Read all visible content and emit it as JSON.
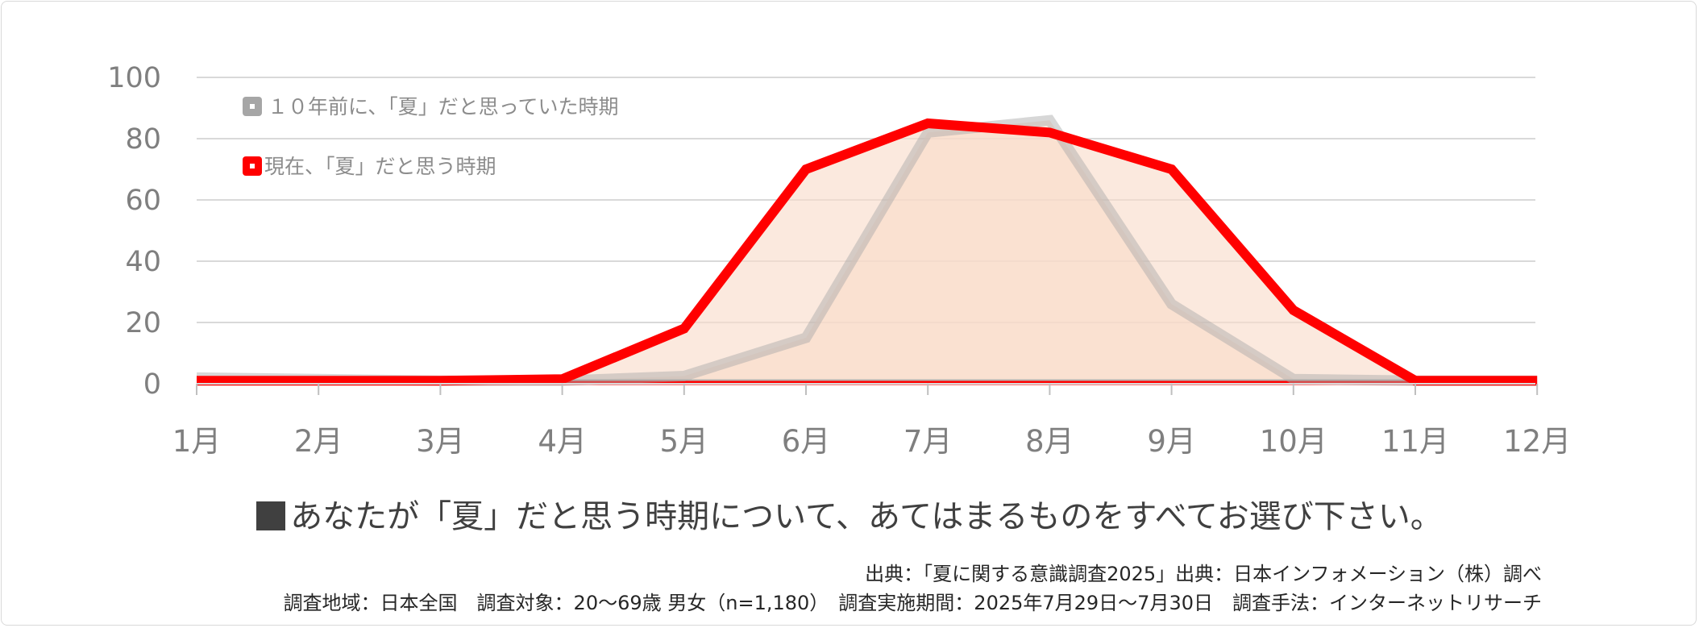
{
  "chart_data": {
    "type": "area",
    "categories": [
      "1月",
      "2月",
      "3月",
      "4月",
      "5月",
      "6月",
      "7月",
      "8月",
      "9月",
      "10月",
      "11月",
      "12月"
    ],
    "series": [
      {
        "name": "１０年前に、「夏」だと思っていた時期",
        "color": "#a6a6a6",
        "values": [
          2,
          1.5,
          1,
          1,
          2.5,
          15,
          82,
          86,
          26,
          1.5,
          1,
          1
        ]
      },
      {
        "name": "現在、「夏」だと思う時期",
        "color": "#ff0000",
        "values": [
          1,
          1,
          1,
          1.5,
          18,
          70,
          85,
          82,
          70,
          24,
          1,
          1
        ]
      }
    ],
    "yticks": [
      "0",
      "20",
      "40",
      "60",
      "80",
      "100"
    ],
    "ylim": [
      0,
      100
    ],
    "grid": true,
    "legend_position": "top-left",
    "fill_color": "#f8dcc9"
  },
  "question": "あなたが「夏」だと思う時期について、あてはまるものをすべてお選び下さい。",
  "notes": {
    "source": "出典：「夏に関する意識調査2025」出典：日本インフォメーション（株）調べ",
    "details": "調査地域：日本全国　調査対象：20～69歳 男女（n=1,180）　調査実施期間：2025年7月29日～7月30日　調査手法：インターネットリサーチ"
  }
}
